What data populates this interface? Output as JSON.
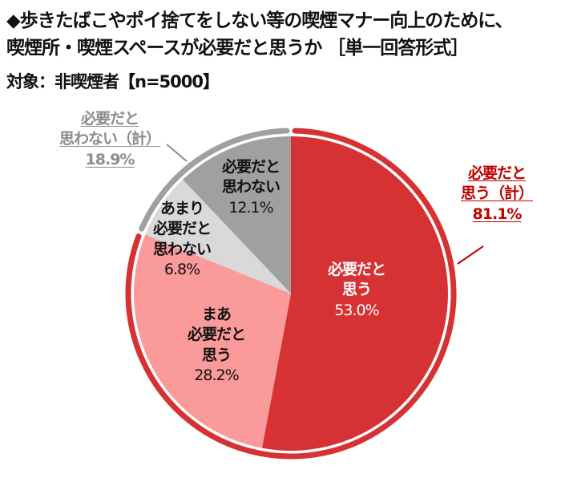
{
  "header": {
    "title_line1": "◆歩きたばこやポイ捨てをしない等の喫煙マナー向上のために、",
    "title_line2": "喫煙所・喫煙スペースが必要だと思うか ［単一回答形式］",
    "subject": "対象：非喫煙者【n=5000】"
  },
  "labels": {
    "not_needed_total": {
      "line1": "必要だと",
      "line2": "思わない（計）",
      "value": "18.9%"
    },
    "needed_total": {
      "line1": "必要だと",
      "line2": "思う（計）",
      "value": "81.1%"
    },
    "needed": {
      "line1": "必要だと",
      "line2": "思う",
      "value": "53.0%"
    },
    "somewhat_needed": {
      "line1": "まあ",
      "line2": "必要だと",
      "line3": "思う",
      "value": "28.2%"
    },
    "not_really_needed": {
      "line1": "あまり",
      "line2": "必要だと",
      "line3": "思わない",
      "value": "6.8%"
    },
    "not_needed": {
      "line1": "必要だと",
      "line2": "思わない",
      "value": "12.1%"
    }
  },
  "colors": {
    "needed": "#d63234",
    "somewhat_needed": "#fb9a9a",
    "not_really_needed": "#d9d9d9",
    "not_needed": "#a0a0a0",
    "total_needed_ring": "#d63234",
    "total_not_needed_ring": "#a0a0a0",
    "total_needed_text": "#c00000",
    "total_not_needed_text": "#8c8c8c"
  },
  "chart_data": {
    "type": "pie",
    "title": "歩きたばこやポイ捨てをしない等の喫煙マナー向上のために、喫煙所・喫煙スペースが必要だと思うか［単一回答形式］",
    "subtitle": "対象：非喫煙者【n=5000】",
    "categories": [
      "必要だと思う",
      "まあ必要だと思う",
      "あまり必要だと思わない",
      "必要だと思わない"
    ],
    "values": [
      53.0,
      28.2,
      6.8,
      12.1
    ],
    "unit": "%",
    "start_angle": "12 o'clock, clockwise",
    "groups": [
      {
        "name": "必要だと思う（計）",
        "value": 81.1,
        "members": [
          "必要だと思う",
          "まあ必要だと思う"
        ]
      },
      {
        "name": "必要だと思わない（計）",
        "value": 18.9,
        "members": [
          "あまり必要だと思わない",
          "必要だと思わない"
        ]
      }
    ],
    "legend": "none (direct labels)"
  }
}
